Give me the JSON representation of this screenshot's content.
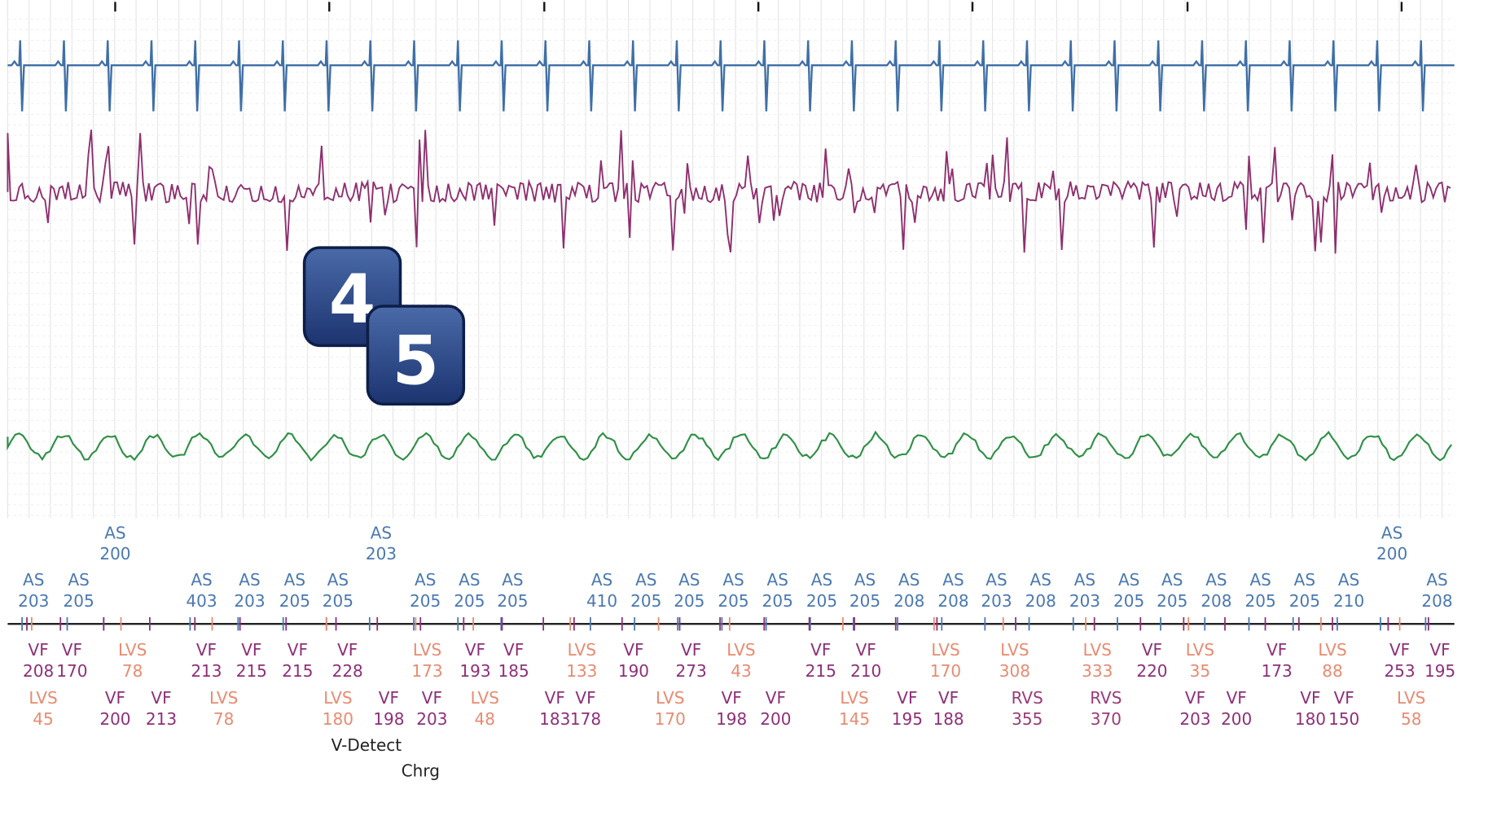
{
  "badges": [
    "4",
    "5"
  ],
  "markers": {
    "row_1": [
      {
        "label": "AS",
        "value": 200
      },
      {
        "label": "AS",
        "value": 203
      },
      {
        "label": "AS",
        "value": 200
      }
    ],
    "row_2": [
      {
        "label": "AS",
        "value": 203
      },
      {
        "label": "AS",
        "value": 205
      },
      {
        "label": "AS",
        "value": 403
      },
      {
        "label": "AS",
        "value": 203
      },
      {
        "label": "AS",
        "value": 205
      },
      {
        "label": "AS",
        "value": 205
      },
      {
        "label": "AS",
        "value": 205
      },
      {
        "label": "AS",
        "value": 205
      },
      {
        "label": "AS",
        "value": 205
      },
      {
        "label": "AS",
        "value": 410
      },
      {
        "label": "AS",
        "value": 205
      },
      {
        "label": "AS",
        "value": 205
      },
      {
        "label": "AS",
        "value": 205
      },
      {
        "label": "AS",
        "value": 205
      },
      {
        "label": "AS",
        "value": 205
      },
      {
        "label": "AS",
        "value": 205
      },
      {
        "label": "AS",
        "value": 208
      },
      {
        "label": "AS",
        "value": 208
      },
      {
        "label": "AS",
        "value": 203
      },
      {
        "label": "AS",
        "value": 208
      },
      {
        "label": "AS",
        "value": 203
      },
      {
        "label": "AS",
        "value": 205
      },
      {
        "label": "AS",
        "value": 205
      },
      {
        "label": "AS",
        "value": 208
      },
      {
        "label": "AS",
        "value": 205
      },
      {
        "label": "AS",
        "value": 205
      },
      {
        "label": "AS",
        "value": 210
      },
      {
        "label": "AS",
        "value": 208
      }
    ],
    "row_3": [
      {
        "label": "VF",
        "value": 208
      },
      {
        "label": "VF",
        "value": 170
      },
      {
        "label": "LVS",
        "value": 78
      },
      {
        "label": "VF",
        "value": 213
      },
      {
        "label": "VF",
        "value": 215
      },
      {
        "label": "VF",
        "value": 215
      },
      {
        "label": "VF",
        "value": 228
      },
      {
        "label": "LVS",
        "value": 173
      },
      {
        "label": "VF",
        "value": 193
      },
      {
        "label": "VF",
        "value": 185
      },
      {
        "label": "LVS",
        "value": 133
      },
      {
        "label": "VF",
        "value": 190
      },
      {
        "label": "VF",
        "value": 273
      },
      {
        "label": "LVS",
        "value": 43
      },
      {
        "label": "VF",
        "value": 215
      },
      {
        "label": "VF",
        "value": 210
      },
      {
        "label": "LVS",
        "value": 170
      },
      {
        "label": "LVS",
        "value": 308
      },
      {
        "label": "LVS",
        "value": 333
      },
      {
        "label": "VF",
        "value": 220
      },
      {
        "label": "LVS",
        "value": 35
      },
      {
        "label": "VF",
        "value": 173
      },
      {
        "label": "LVS",
        "value": 88
      },
      {
        "label": "VF",
        "value": 253
      },
      {
        "label": "VF",
        "value": 195
      }
    ],
    "row_4": [
      {
        "label": "LVS",
        "value": 45
      },
      {
        "label": "VF",
        "value": 200
      },
      {
        "label": "VF",
        "value": 213
      },
      {
        "label": "LVS",
        "value": 78
      },
      {
        "label": "LVS",
        "value": 180
      },
      {
        "label": "VF",
        "value": 198
      },
      {
        "label": "VF",
        "value": 203
      },
      {
        "label": "LVS",
        "value": 48
      },
      {
        "label": "VF",
        "value": 183
      },
      {
        "label": "VF",
        "value": 178
      },
      {
        "label": "LVS",
        "value": 170
      },
      {
        "label": "VF",
        "value": 198
      },
      {
        "label": "VF",
        "value": 200
      },
      {
        "label": "LVS",
        "value": 145
      },
      {
        "label": "VF",
        "value": 195
      },
      {
        "label": "VF",
        "value": 188
      },
      {
        "label": "RVS",
        "value": 355
      },
      {
        "label": "RVS",
        "value": 370
      },
      {
        "label": "VF",
        "value": 203
      },
      {
        "label": "VF",
        "value": 200
      },
      {
        "label": "VF",
        "value": 180
      },
      {
        "label": "VF",
        "value": 150
      },
      {
        "label": "LVS",
        "value": 58
      }
    ]
  },
  "events": [
    "V-Detect",
    "Chrg"
  ]
}
